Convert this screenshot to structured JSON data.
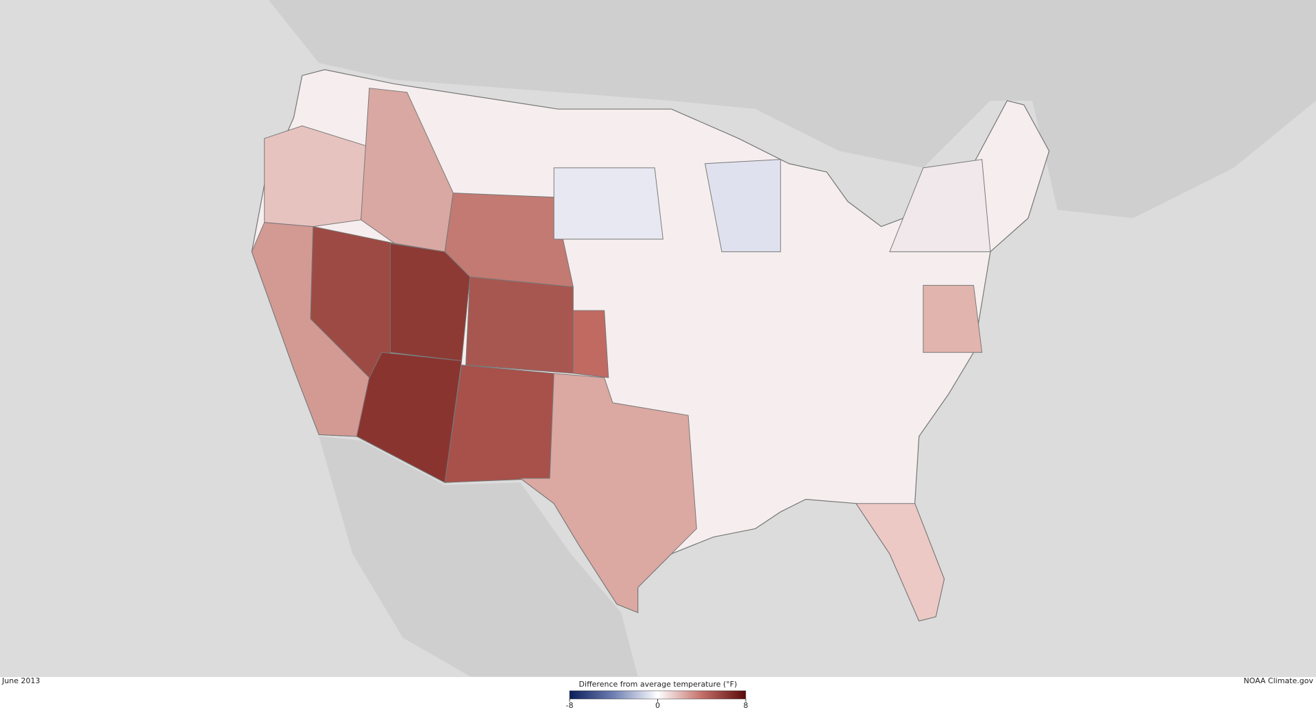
{
  "map": {
    "date": "June 2013",
    "legend": {
      "title": "Difference from average temperature (°F)",
      "min": -8,
      "max": 8,
      "ticks": [
        -8,
        0,
        8
      ]
    },
    "credit": "NOAA Climate.gov"
  }
}
